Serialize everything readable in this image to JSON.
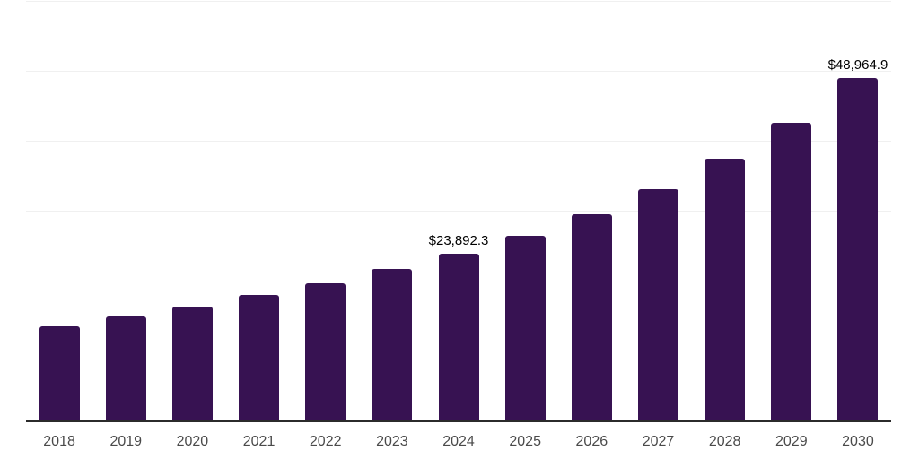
{
  "chart": {
    "colors": {
      "background": "#ffffff",
      "bar": "#371252",
      "grid": "#f0f0f0",
      "axis": "#2b2b2b",
      "tick_label": "#4a4a4a",
      "data_label": "#000000"
    }
  },
  "chart_data": {
    "type": "bar",
    "title": "",
    "xlabel": "",
    "ylabel": "",
    "categories": [
      "2018",
      "2019",
      "2020",
      "2021",
      "2022",
      "2023",
      "2024",
      "2025",
      "2026",
      "2027",
      "2028",
      "2029",
      "2030"
    ],
    "values": [
      13430,
      14840,
      16240,
      17910,
      19570,
      21620,
      23892.3,
      26470,
      29550,
      33130,
      37470,
      42590,
      48964.9
    ],
    "data_labels": [
      "",
      "",
      "",
      "",
      "",
      "",
      "$23,892.3",
      "",
      "",
      "",
      "",
      "",
      "$48,964.9"
    ],
    "ylim": [
      0,
      60000
    ],
    "gridline_interval": 10000,
    "grid": "on",
    "legend": "none"
  }
}
